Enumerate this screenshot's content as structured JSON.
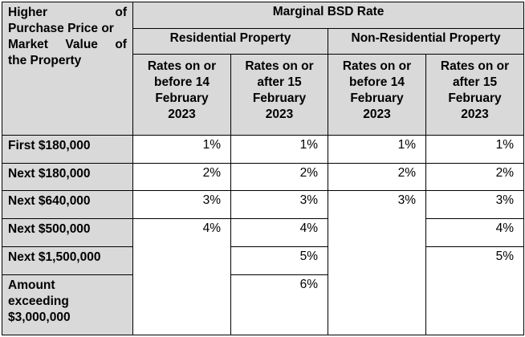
{
  "header": {
    "corner_lines": [
      [
        "Higher",
        "of"
      ],
      [
        "Purchase Price or"
      ],
      [
        "Market",
        "Value",
        "of"
      ],
      [
        "the Property"
      ]
    ],
    "marginal_rate": "Marginal BSD Rate",
    "residential": "Residential Property",
    "non_residential": "Non-Residential Property",
    "col_before": [
      "Rates on or",
      "before 14",
      "February",
      "2023"
    ],
    "col_after": [
      "Rates on or",
      "after 15",
      "February",
      "2023"
    ]
  },
  "rows": [
    {
      "label": "First $180,000",
      "res_before": "1%",
      "res_after": "1%",
      "nonres_before": "1%",
      "nonres_after": "1%"
    },
    {
      "label": "Next $180,000",
      "res_before": "2%",
      "res_after": "2%",
      "nonres_before": "2%",
      "nonres_after": "2%"
    },
    {
      "label": "Next $640,000",
      "res_before": "3%",
      "res_after": "3%",
      "nonres_before": "3%",
      "nonres_after": "3%"
    },
    {
      "label": "Next $500,000",
      "res_before": "4%",
      "res_after": "4%",
      "nonres_after": "4%"
    },
    {
      "label": "Next $1,500,000",
      "res_after": "5%",
      "nonres_after": "5%"
    },
    {
      "label_lines": [
        "Amount",
        "exceeding",
        "$3,000,000"
      ],
      "res_after": "6%"
    }
  ]
}
